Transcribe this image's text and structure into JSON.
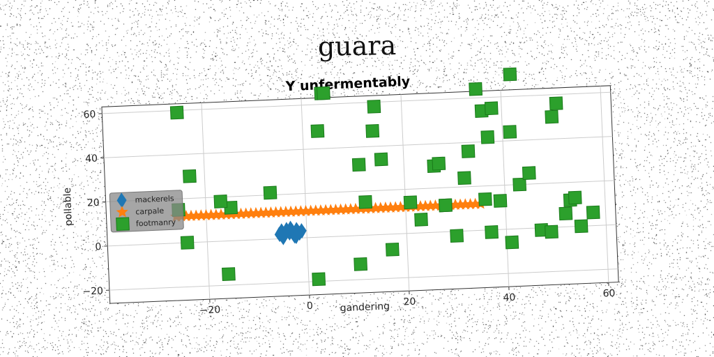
{
  "figure": {
    "suptitle": "guara"
  },
  "colors": {
    "mackerels": "#1f77b4",
    "carpale": "#ff7f0e",
    "footmanry": "#2ca02c"
  },
  "chart_data": {
    "type": "scatter",
    "title": "Y unfermentably",
    "xlabel": "gandering",
    "ylabel": "pollable",
    "xlim": [
      -40,
      62
    ],
    "ylim": [
      -26,
      63
    ],
    "xticks": [
      -20,
      0,
      20,
      40,
      60
    ],
    "yticks": [
      -20,
      0,
      20,
      40,
      60
    ],
    "grid": true,
    "legend": {
      "placement": "center-left"
    },
    "series": [
      {
        "name": "mackerels",
        "marker": "diamond",
        "x": [
          -5.5,
          -5.0,
          -4.5,
          -4.0,
          -3.5,
          -3.0,
          -2.5,
          -2.0,
          -1.5,
          -1.0,
          -4.8,
          -3.2,
          -2.2
        ],
        "y": [
          2.0,
          3.5,
          1.5,
          4.0,
          2.5,
          3.0,
          1.0,
          3.8,
          2.2,
          3.2,
          0.5,
          4.5,
          0.8
        ]
      },
      {
        "name": "carpale",
        "marker": "star",
        "x": [
          -26,
          -25,
          -24,
          -23,
          -22,
          -21,
          -20,
          -19,
          -18,
          -17,
          -16,
          -15,
          -14,
          -13,
          -12,
          -11,
          -10,
          -9,
          -8,
          -7,
          -6,
          -5,
          -4,
          -3,
          -2,
          -1,
          0,
          1,
          2,
          3,
          4,
          5,
          6,
          7,
          8,
          9,
          10,
          11,
          12,
          13,
          14,
          15,
          16,
          17,
          18,
          19,
          20,
          21,
          22,
          23,
          24,
          25,
          26,
          27,
          28,
          29,
          30,
          31,
          32,
          33,
          34,
          35
        ],
        "y": [
          12,
          12,
          12,
          12,
          12,
          12,
          12,
          12,
          12,
          12,
          12,
          12,
          12,
          12,
          12,
          12,
          12,
          12,
          12,
          12,
          12,
          12,
          12,
          12,
          12,
          12,
          12,
          12,
          12,
          12,
          12,
          12,
          12,
          12,
          12,
          12,
          12,
          12,
          12,
          12,
          12,
          12,
          12,
          12,
          12,
          12,
          12,
          12,
          12,
          12,
          12,
          12,
          12,
          12,
          12,
          12,
          12,
          12,
          12,
          12,
          12,
          12
        ]
      },
      {
        "name": "footmanry",
        "marker": "square",
        "x": [
          -25,
          -23,
          -25.5,
          -24,
          -16,
          -15,
          -17,
          -7,
          2,
          3,
          4,
          4.5,
          10.5,
          11,
          12,
          14,
          14.5,
          15.5,
          17,
          21,
          23,
          26,
          27,
          28,
          28,
          30,
          32,
          33,
          35,
          36,
          36,
          37,
          37,
          38,
          39,
          41,
          41.5,
          42,
          43,
          45,
          47,
          49,
          50,
          51,
          52,
          53,
          54,
          55,
          57.5
        ],
        "y": [
          59,
          30,
          15,
          0,
          -15,
          15,
          18,
          21,
          -19,
          48,
          65,
          65,
          -13,
          32,
          15,
          47,
          58,
          34,
          -7,
          14,
          6,
          30,
          31,
          12,
          12,
          -2,
          24,
          36,
          64,
          54,
          14,
          42,
          -1,
          55,
          13,
          -6,
          44,
          70,
          20,
          25,
          -1,
          -2,
          50,
          56,
          6,
          12,
          13,
          0,
          6
        ]
      }
    ]
  }
}
